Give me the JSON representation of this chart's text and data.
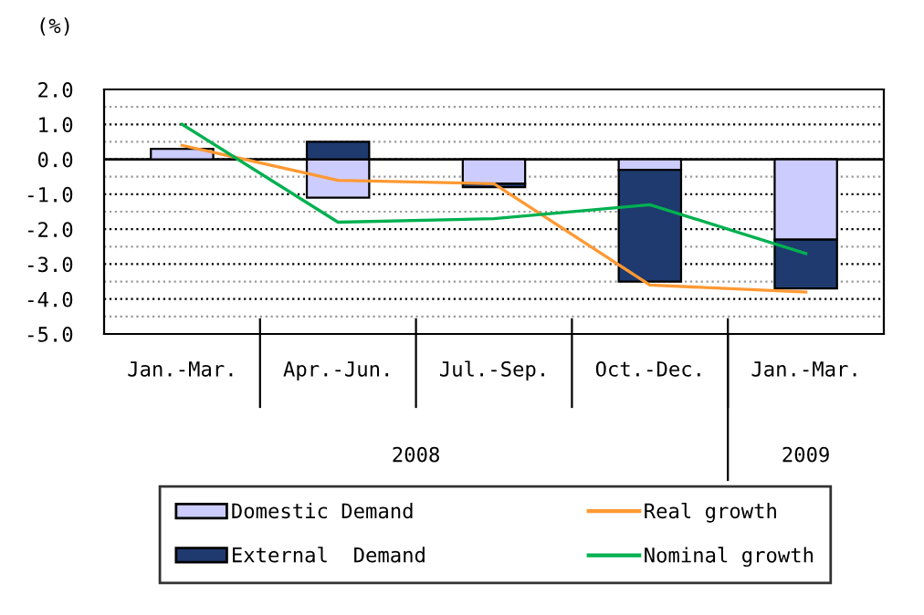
{
  "chart_data": {
    "type": "bar",
    "stacked": true,
    "ylabel": "(%)",
    "categories": [
      "Jan.-Mar.",
      "Apr.-Jun.",
      "Jul.-Sep.",
      "Oct.-Dec.",
      "Jan.-Mar."
    ],
    "series": [
      {
        "name": "Domestic Demand",
        "color": "#ccccff",
        "values": [
          0.3,
          -1.1,
          -0.7,
          -0.3,
          -2.3
        ]
      },
      {
        "name": "External  Demand",
        "color": "#1f3a6e",
        "values": [
          null,
          0.5,
          -0.1,
          -3.2,
          -1.4
        ]
      },
      {
        "name": "Real growth",
        "type": "line",
        "color": "#ff9933",
        "values": [
          0.4,
          -0.6,
          -0.7,
          -3.6,
          -3.8
        ]
      },
      {
        "name": "Nominal growth",
        "type": "line",
        "color": "#00b050",
        "values": [
          1.0,
          -1.8,
          -1.7,
          -1.3,
          -2.7
        ]
      }
    ],
    "ylim": [
      -5.0,
      2.0
    ],
    "yticks": [
      {
        "value": -5,
        "label": "-5.0"
      },
      {
        "value": -4.5,
        "label": null
      },
      {
        "value": -4,
        "label": "-4.0"
      },
      {
        "value": -3.5,
        "label": null
      },
      {
        "value": -3,
        "label": "-3.0"
      },
      {
        "value": -2.5,
        "label": null
      },
      {
        "value": -2,
        "label": "-2.0"
      },
      {
        "value": -1.5,
        "label": null
      },
      {
        "value": -1,
        "label": "-1.0"
      },
      {
        "value": -0.5,
        "label": null
      },
      {
        "value": 0,
        "label": "0.0"
      },
      {
        "value": 0.5,
        "label": null
      },
      {
        "value": 1,
        "label": "1.0"
      },
      {
        "value": 1.5,
        "label": null
      },
      {
        "value": 2,
        "label": "2.0"
      }
    ],
    "annotations": [
      "2008",
      "2009"
    ],
    "grid": "y",
    "legend": "bottom"
  }
}
